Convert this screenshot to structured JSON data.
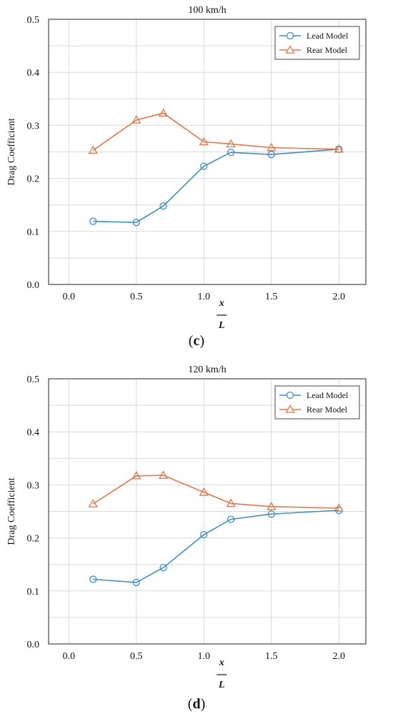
{
  "chart_data": [
    {
      "type": "line",
      "panel_label": "c",
      "title": "100 km/h",
      "ylabel": "Drag Coefficient",
      "xlabel_num": "x",
      "xlabel_den": "L",
      "x_ticks": [
        "0.0",
        "0.5",
        "1.0",
        "1.5",
        "2.0"
      ],
      "y_ticks": [
        "0.0",
        "0.1",
        "0.2",
        "0.3",
        "0.4",
        "0.5"
      ],
      "xlim": [
        -0.15,
        2.2
      ],
      "ylim": [
        0,
        0.5
      ],
      "grid": true,
      "legend_position": "top-right",
      "series": [
        {
          "name": "Lead Model",
          "color": "#3d8fc4",
          "marker": "circle",
          "x": [
            0.18,
            0.5,
            0.7,
            1.0,
            1.2,
            1.5,
            2.0
          ],
          "y": [
            0.119,
            0.117,
            0.148,
            0.223,
            0.249,
            0.245,
            0.255
          ]
        },
        {
          "name": "Rear Model",
          "color": "#e0784a",
          "marker": "triangle",
          "x": [
            0.18,
            0.5,
            0.7,
            1.0,
            1.2,
            1.5,
            2.0
          ],
          "y": [
            0.253,
            0.31,
            0.323,
            0.269,
            0.265,
            0.258,
            0.255
          ]
        }
      ]
    },
    {
      "type": "line",
      "panel_label": "d",
      "title": "120 km/h",
      "ylabel": "Drag Coefficient",
      "xlabel_num": "x",
      "xlabel_den": "L",
      "x_ticks": [
        "0.0",
        "0.5",
        "1.0",
        "1.5",
        "2.0"
      ],
      "y_ticks": [
        "0.0",
        "0.1",
        "0.2",
        "0.3",
        "0.4",
        "0.5"
      ],
      "xlim": [
        -0.15,
        2.2
      ],
      "ylim": [
        0,
        0.5
      ],
      "grid": true,
      "legend_position": "top-right",
      "series": [
        {
          "name": "Lead Model",
          "color": "#3d8fc4",
          "marker": "circle",
          "x": [
            0.18,
            0.5,
            0.7,
            1.0,
            1.2,
            1.5,
            2.0
          ],
          "y": [
            0.122,
            0.116,
            0.144,
            0.206,
            0.235,
            0.245,
            0.252
          ]
        },
        {
          "name": "Rear Model",
          "color": "#e0784a",
          "marker": "triangle",
          "x": [
            0.18,
            0.5,
            0.7,
            1.0,
            1.2,
            1.5,
            2.0
          ],
          "y": [
            0.264,
            0.317,
            0.318,
            0.286,
            0.265,
            0.259,
            0.256
          ]
        }
      ]
    }
  ]
}
